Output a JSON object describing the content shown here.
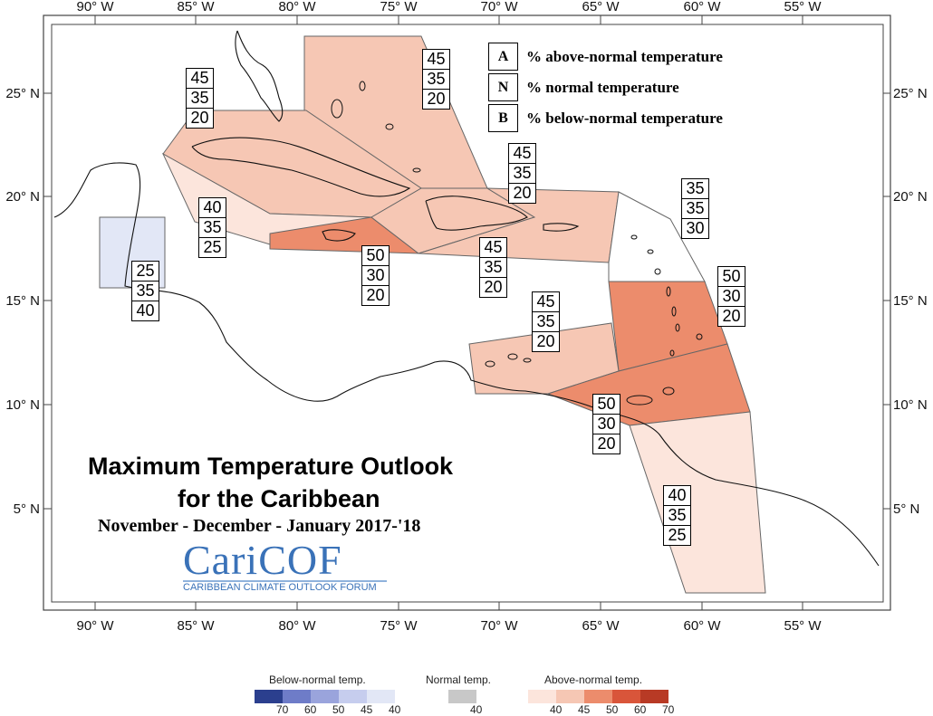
{
  "map": {
    "title_line1": "Maximum Temperature Outlook",
    "title_line2": "for the Caribbean",
    "subtitle": "November - December - January 2017-'18",
    "logo": {
      "name": "CariCOF",
      "tagline": "CARIBBEAN CLIMATE OUTLOOK FORUM"
    },
    "longitude_ticks": [
      "90° W",
      "85° W",
      "80° W",
      "75° W",
      "70° W",
      "65° W",
      "60° W",
      "55° W"
    ],
    "latitude_ticks": [
      "25° N",
      "20° N",
      "15° N",
      "10° N",
      "5° N"
    ],
    "key": [
      {
        "letter": "A",
        "text": "% above-normal temperature"
      },
      {
        "letter": "N",
        "text": "% normal temperature"
      },
      {
        "letter": "B",
        "text": "% below-normal temperature"
      }
    ],
    "regions": [
      {
        "region": "bahamas",
        "above": "45",
        "normal": "35",
        "below": "20",
        "color": "#f6c7b4"
      },
      {
        "region": "cuba",
        "above": "45",
        "normal": "35",
        "below": "20",
        "color": "#f6c7b4"
      },
      {
        "region": "cayman",
        "above": "40",
        "normal": "35",
        "below": "25",
        "color": "#fce5dc"
      },
      {
        "region": "jamaica",
        "above": "50",
        "normal": "30",
        "below": "20",
        "color": "#ec8c6c"
      },
      {
        "region": "hispaniola",
        "above": "45",
        "normal": "35",
        "below": "20",
        "color": "#f6c7b4"
      },
      {
        "region": "puerto-rico",
        "above": "45",
        "normal": "35",
        "below": "20",
        "color": "#f6c7b4"
      },
      {
        "region": "northern-leewards",
        "above": "35",
        "normal": "35",
        "below": "30",
        "color": "#ffffff"
      },
      {
        "region": "belize",
        "above": "25",
        "normal": "35",
        "below": "40",
        "color": "#e2e7f6"
      },
      {
        "region": "eastern-caribbean",
        "above": "50",
        "normal": "30",
        "below": "20",
        "color": "#ec8c6c"
      },
      {
        "region": "abc-islands",
        "above": "45",
        "normal": "35",
        "below": "20",
        "color": "#f6c7b4"
      },
      {
        "region": "trinidad",
        "above": "50",
        "normal": "30",
        "below": "20",
        "color": "#ec8c6c"
      },
      {
        "region": "guianas",
        "above": "40",
        "normal": "35",
        "below": "25",
        "color": "#fce5dc"
      }
    ]
  },
  "legend": {
    "below_title": "Below-normal temp.",
    "normal_title": "Normal temp.",
    "above_title": "Above-normal temp.",
    "below": [
      {
        "label": "70",
        "color": "#2b3f8e"
      },
      {
        "label": "60",
        "color": "#6e7cc8"
      },
      {
        "label": "50",
        "color": "#9aa4dc"
      },
      {
        "label": "45",
        "color": "#c6cdee"
      },
      {
        "label": "40",
        "color": "#e2e7f6"
      }
    ],
    "normal": [
      {
        "label": "40",
        "color": "#c8c8c8"
      }
    ],
    "above": [
      {
        "label": "40",
        "color": "#fce5dc"
      },
      {
        "label": "45",
        "color": "#f6c7b4"
      },
      {
        "label": "50",
        "color": "#ec8c6c"
      },
      {
        "label": "60",
        "color": "#d9553a"
      },
      {
        "label": "70",
        "color": "#b83a25"
      }
    ]
  }
}
